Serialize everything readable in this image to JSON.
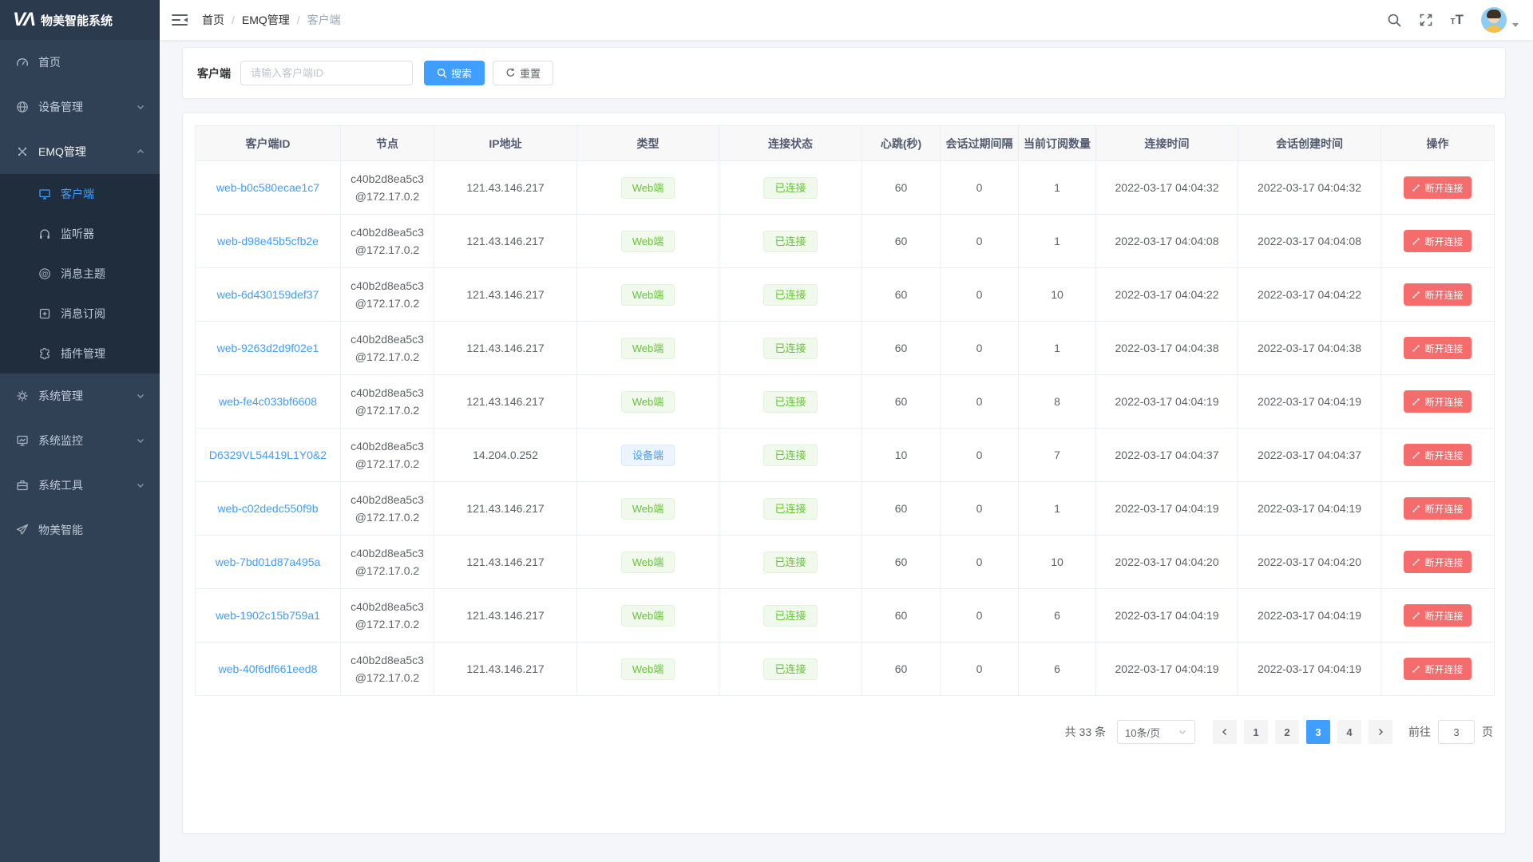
{
  "app": {
    "logo_mark": "VΛ",
    "title": "物美智能系统"
  },
  "colors": {
    "primary": "#409eff",
    "success": "#67c23a",
    "danger": "#f56c6c",
    "sidebar_bg": "#304156",
    "submenu_bg": "#1f2d3d"
  },
  "sidebar": {
    "items": [
      {
        "label": "首页",
        "icon": "dashboard-icon"
      },
      {
        "label": "设备管理",
        "icon": "devices-icon",
        "chevron": "down"
      },
      {
        "label": "EMQ管理",
        "icon": "emq-icon",
        "chevron": "up",
        "submenu": [
          {
            "label": "客户端",
            "icon": "client-icon",
            "active": true
          },
          {
            "label": "监听器",
            "icon": "listener-icon"
          },
          {
            "label": "消息主题",
            "icon": "topic-icon"
          },
          {
            "label": "消息订阅",
            "icon": "subscribe-icon"
          },
          {
            "label": "插件管理",
            "icon": "plugin-icon"
          }
        ]
      },
      {
        "label": "系统管理",
        "icon": "gear-icon",
        "chevron": "down"
      },
      {
        "label": "系统监控",
        "icon": "monitor-icon",
        "chevron": "down"
      },
      {
        "label": "系统工具",
        "icon": "tools-icon",
        "chevron": "down"
      },
      {
        "label": "物美智能",
        "icon": "send-icon"
      }
    ]
  },
  "breadcrumb": {
    "items": [
      "首页",
      "EMQ管理",
      "客户端"
    ],
    "separator": "/"
  },
  "search": {
    "label": "客户端",
    "placeholder": "请输入客户端ID",
    "search_btn": "搜索",
    "reset_btn": "重置"
  },
  "table": {
    "headers": [
      "客户端ID",
      "节点",
      "IP地址",
      "类型",
      "连接状态",
      "心跳(秒)",
      "会话过期间隔",
      "当前订阅数量",
      "连接时间",
      "会话创建时间",
      "操作"
    ],
    "action_label": "断开连接",
    "rows": [
      {
        "id": "web-b0c580ecae1c7",
        "node_line1": "c40b2d8ea5c3",
        "node_line2": "@172.17.0.2",
        "ip": "121.43.146.217",
        "type": "Web端",
        "type_color": "green",
        "status": "已连接",
        "heartbeat": "60",
        "expiry": "0",
        "subs": "1",
        "connected": "2022-03-17 04:04:32",
        "created": "2022-03-17 04:04:32"
      },
      {
        "id": "web-d98e45b5cfb2e",
        "node_line1": "c40b2d8ea5c3",
        "node_line2": "@172.17.0.2",
        "ip": "121.43.146.217",
        "type": "Web端",
        "type_color": "green",
        "status": "已连接",
        "heartbeat": "60",
        "expiry": "0",
        "subs": "1",
        "connected": "2022-03-17 04:04:08",
        "created": "2022-03-17 04:04:08"
      },
      {
        "id": "web-6d430159def37",
        "node_line1": "c40b2d8ea5c3",
        "node_line2": "@172.17.0.2",
        "ip": "121.43.146.217",
        "type": "Web端",
        "type_color": "green",
        "status": "已连接",
        "heartbeat": "60",
        "expiry": "0",
        "subs": "10",
        "connected": "2022-03-17 04:04:22",
        "created": "2022-03-17 04:04:22"
      },
      {
        "id": "web-9263d2d9f02e1",
        "node_line1": "c40b2d8ea5c3",
        "node_line2": "@172.17.0.2",
        "ip": "121.43.146.217",
        "type": "Web端",
        "type_color": "green",
        "status": "已连接",
        "heartbeat": "60",
        "expiry": "0",
        "subs": "1",
        "connected": "2022-03-17 04:04:38",
        "created": "2022-03-17 04:04:38"
      },
      {
        "id": "web-fe4c033bf6608",
        "node_line1": "c40b2d8ea5c3",
        "node_line2": "@172.17.0.2",
        "ip": "121.43.146.217",
        "type": "Web端",
        "type_color": "green",
        "status": "已连接",
        "heartbeat": "60",
        "expiry": "0",
        "subs": "8",
        "connected": "2022-03-17 04:04:19",
        "created": "2022-03-17 04:04:19"
      },
      {
        "id": "D6329VL54419L1Y0&2",
        "node_line1": "c40b2d8ea5c3",
        "node_line2": "@172.17.0.2",
        "ip": "14.204.0.252",
        "type": "设备端",
        "type_color": "blue",
        "status": "已连接",
        "heartbeat": "10",
        "expiry": "0",
        "subs": "7",
        "connected": "2022-03-17 04:04:37",
        "created": "2022-03-17 04:04:37"
      },
      {
        "id": "web-c02dedc550f9b",
        "node_line1": "c40b2d8ea5c3",
        "node_line2": "@172.17.0.2",
        "ip": "121.43.146.217",
        "type": "Web端",
        "type_color": "green",
        "status": "已连接",
        "heartbeat": "60",
        "expiry": "0",
        "subs": "1",
        "connected": "2022-03-17 04:04:19",
        "created": "2022-03-17 04:04:19"
      },
      {
        "id": "web-7bd01d87a495a",
        "node_line1": "c40b2d8ea5c3",
        "node_line2": "@172.17.0.2",
        "ip": "121.43.146.217",
        "type": "Web端",
        "type_color": "green",
        "status": "已连接",
        "heartbeat": "60",
        "expiry": "0",
        "subs": "10",
        "connected": "2022-03-17 04:04:20",
        "created": "2022-03-17 04:04:20"
      },
      {
        "id": "web-1902c15b759a1",
        "node_line1": "c40b2d8ea5c3",
        "node_line2": "@172.17.0.2",
        "ip": "121.43.146.217",
        "type": "Web端",
        "type_color": "green",
        "status": "已连接",
        "heartbeat": "60",
        "expiry": "0",
        "subs": "6",
        "connected": "2022-03-17 04:04:19",
        "created": "2022-03-17 04:04:19"
      },
      {
        "id": "web-40f6df661eed8",
        "node_line1": "c40b2d8ea5c3",
        "node_line2": "@172.17.0.2",
        "ip": "121.43.146.217",
        "type": "Web端",
        "type_color": "green",
        "status": "已连接",
        "heartbeat": "60",
        "expiry": "0",
        "subs": "6",
        "connected": "2022-03-17 04:04:19",
        "created": "2022-03-17 04:04:19"
      }
    ]
  },
  "pagination": {
    "total_text": "共 33 条",
    "page_size": "10条/页",
    "pages": [
      "1",
      "2",
      "3",
      "4"
    ],
    "active_page": "3",
    "goto_label": "前往",
    "goto_value": "3",
    "page_label": "页"
  }
}
